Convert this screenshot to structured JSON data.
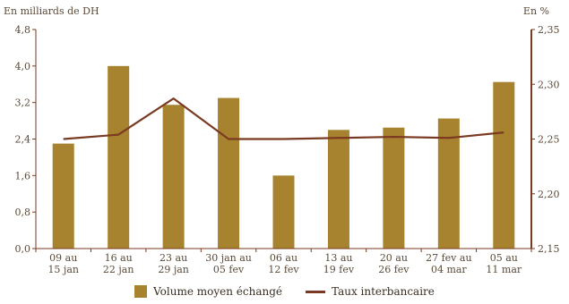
{
  "chart_data": {
    "type": "bar",
    "left_axis_unit": "En milliards de DH",
    "right_axis_unit": "En %",
    "categories": [
      [
        "09 au",
        "15 jan"
      ],
      [
        "16 au",
        "22 jan"
      ],
      [
        "23 au",
        "29 jan"
      ],
      [
        "30 jan au",
        "05 fev"
      ],
      [
        "06 au",
        "12 fev"
      ],
      [
        "13 au",
        "19 fev"
      ],
      [
        "20 au",
        "26 fev"
      ],
      [
        "27 fev au",
        "04 mar"
      ],
      [
        "05 au",
        "11 mar"
      ]
    ],
    "series": [
      {
        "name": "Volume moyen échangé",
        "type": "bar",
        "axis": "left",
        "color": "#a8832f",
        "values": [
          2.3,
          4.0,
          3.15,
          3.3,
          1.6,
          2.6,
          2.65,
          2.85,
          3.65
        ]
      },
      {
        "name": "Taux interbancaire",
        "type": "line",
        "axis": "right",
        "color": "#7a3a22",
        "values": [
          2.25,
          2.254,
          2.287,
          2.25,
          2.25,
          2.251,
          2.252,
          2.251,
          2.256
        ]
      }
    ],
    "left_axis": {
      "ylim": [
        0,
        4.8
      ],
      "ticks": [
        "0,0",
        "0,8",
        "1,6",
        "2,4",
        "3,2",
        "4,0",
        "4,8"
      ]
    },
    "right_axis": {
      "ylim": [
        2.15,
        2.35
      ],
      "ticks": [
        "2,15",
        "2,20",
        "2,25",
        "2,30",
        "2,35"
      ]
    },
    "grid": false,
    "legend_position": "bottom",
    "axis_color": "#7a3a22"
  }
}
